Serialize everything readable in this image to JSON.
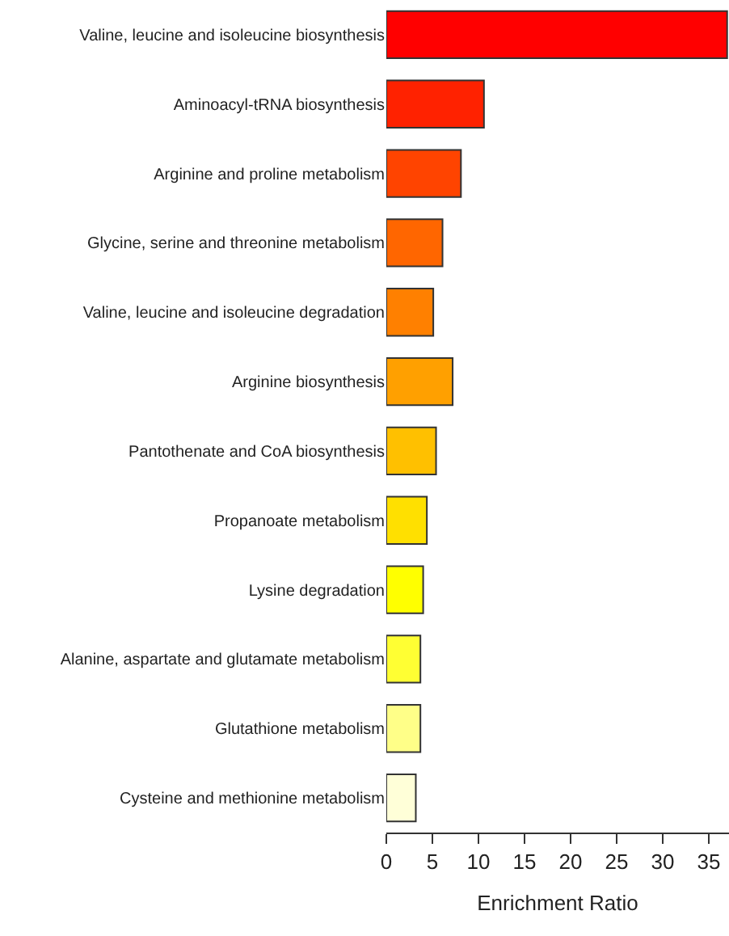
{
  "chart_data": {
    "type": "bar",
    "orientation": "horizontal",
    "xlabel": "Enrichment Ratio",
    "categories": [
      "Valine, leucine and isoleucine biosynthesis",
      "Aminoacyl-tRNA biosynthesis",
      "Arginine and proline metabolism",
      "Glycine, serine and threonine metabolism",
      "Valine, leucine and isoleucine degradation",
      "Arginine biosynthesis",
      "Pantothenate and CoA biosynthesis",
      "Propanoate metabolism",
      "Lysine degradation",
      "Alanine, aspartate and glutamate metabolism",
      "Glutathione metabolism",
      "Cysteine and methionine metabolism"
    ],
    "values": [
      37,
      10.6,
      8.1,
      6.1,
      5.1,
      7.2,
      5.4,
      4.4,
      4.0,
      3.7,
      3.7,
      3.2
    ],
    "colors": [
      "#ff0000",
      "#ff2200",
      "#ff4400",
      "#ff6600",
      "#ff8000",
      "#ffa000",
      "#ffc000",
      "#ffe000",
      "#ffff00",
      "#ffff33",
      "#ffff88",
      "#ffffd8"
    ],
    "xlim": [
      0,
      37.2
    ],
    "xticks": [
      0,
      5,
      10,
      15,
      20,
      25,
      30,
      35
    ]
  }
}
